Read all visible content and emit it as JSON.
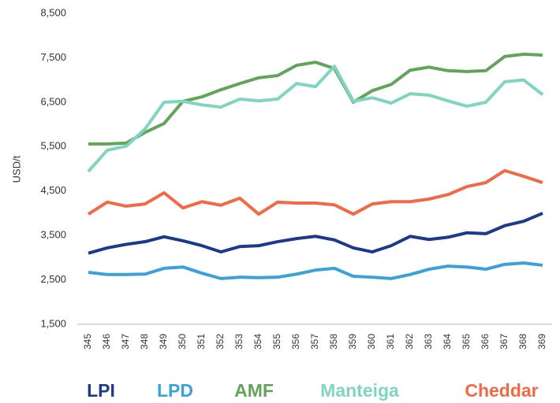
{
  "chart_data": {
    "type": "line",
    "y_label": "USD/t",
    "categories": [
      "345",
      "346",
      "347",
      "348",
      "349",
      "350",
      "351",
      "352",
      "353",
      "354",
      "355",
      "356",
      "357",
      "358",
      "359",
      "360",
      "361",
      "362",
      "363",
      "364",
      "365",
      "366",
      "367",
      "368",
      "369"
    ],
    "series": [
      {
        "name": "LPI",
        "color": "#1b3a8c",
        "values": [
          3100,
          3220,
          3300,
          3360,
          3470,
          3380,
          3270,
          3130,
          3250,
          3270,
          3360,
          3430,
          3480,
          3400,
          3220,
          3130,
          3270,
          3480,
          3410,
          3460,
          3560,
          3540,
          3720,
          3820,
          4000
        ]
      },
      {
        "name": "LPD",
        "color": "#3ba1d9",
        "values": [
          2670,
          2620,
          2620,
          2630,
          2760,
          2790,
          2650,
          2530,
          2560,
          2550,
          2560,
          2630,
          2720,
          2760,
          2580,
          2560,
          2530,
          2620,
          2740,
          2810,
          2790,
          2740,
          2850,
          2880,
          2830
        ]
      },
      {
        "name": "AMF",
        "color": "#63a35b",
        "values": [
          5560,
          5560,
          5580,
          5820,
          6020,
          6520,
          6620,
          6780,
          6920,
          7050,
          7100,
          7330,
          7400,
          7260,
          6500,
          6760,
          6900,
          7220,
          7290,
          7210,
          7190,
          7210,
          7530,
          7580,
          7560
        ]
      },
      {
        "name": "Manteiga",
        "color": "#80d5c1",
        "values": [
          4940,
          5420,
          5510,
          5900,
          6500,
          6520,
          6440,
          6390,
          6570,
          6530,
          6570,
          6920,
          6850,
          7310,
          6520,
          6600,
          6480,
          6690,
          6660,
          6530,
          6410,
          6500,
          6960,
          7000,
          6670
        ]
      },
      {
        "name": "Cheddar",
        "color": "#f26a45",
        "values": [
          3980,
          4250,
          4160,
          4210,
          4460,
          4120,
          4260,
          4180,
          4340,
          3980,
          4250,
          4230,
          4230,
          4190,
          3980,
          4210,
          4260,
          4260,
          4320,
          4420,
          4600,
          4690,
          4960,
          4830,
          4690
        ]
      }
    ],
    "ylim": [
      1500,
      8500
    ],
    "yticks": [
      {
        "value": 1500,
        "label": "1,500"
      },
      {
        "value": 2500,
        "label": "2,500"
      },
      {
        "value": 3500,
        "label": "3,500"
      },
      {
        "value": 4500,
        "label": "4,500"
      },
      {
        "value": 5500,
        "label": "5,500"
      },
      {
        "value": 6500,
        "label": "6,500"
      },
      {
        "value": 7500,
        "label": "7,500"
      },
      {
        "value": 8500,
        "label": "8,500"
      }
    ],
    "grid": false,
    "legend": "bottom"
  }
}
